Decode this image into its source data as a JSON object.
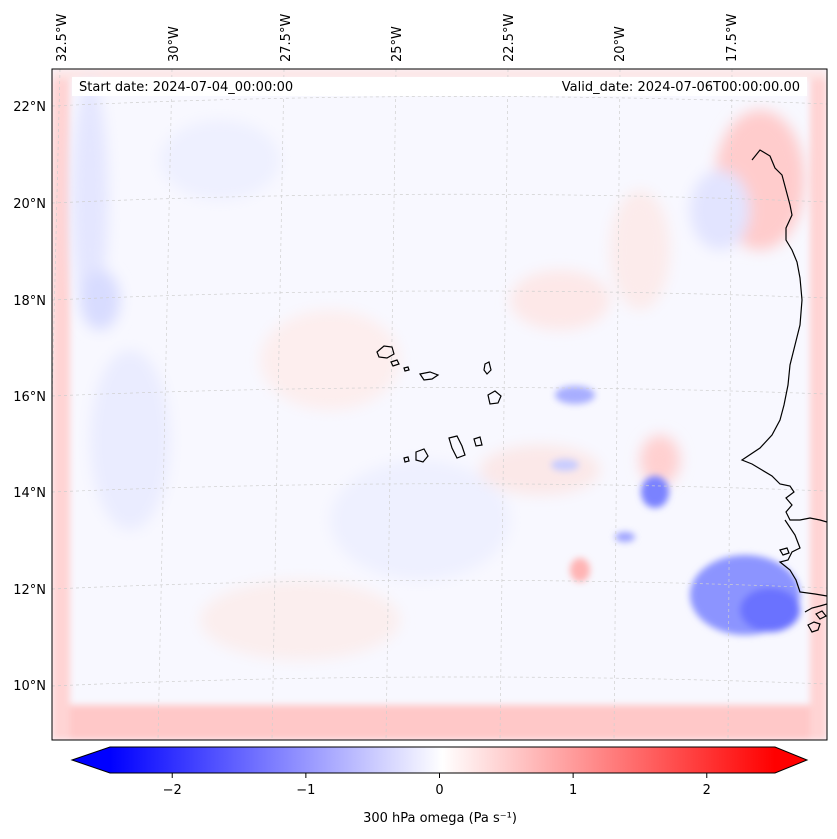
{
  "map": {
    "start_label": "Start date: 2024-07-04_00:00:00",
    "valid_label": "Valid_date: 2024-07-06T00:00:00.00",
    "lon_labels": [
      "32.5°W",
      "30°W",
      "27.5°W",
      "25°W",
      "22.5°W",
      "20°W",
      "17.5°W"
    ],
    "lat_labels": [
      "22°N",
      "20°N",
      "18°N",
      "16°N",
      "14°N",
      "12°N",
      "10°N"
    ],
    "variable": "300 hPa omega",
    "units": "Pa s⁻¹"
  },
  "colorbar": {
    "label": "300 hPa omega (Pa s⁻¹)",
    "range": [
      -2.75,
      2.75
    ],
    "ticks": [
      {
        "value": -2,
        "label": "−2"
      },
      {
        "value": -1,
        "label": "−1"
      },
      {
        "value": 0,
        "label": "0"
      },
      {
        "value": 1,
        "label": "1"
      },
      {
        "value": 2,
        "label": "2"
      }
    ],
    "colors": {
      "neg": "#0000ff",
      "mid": "#ffffff",
      "pos": "#ff0000"
    }
  }
}
